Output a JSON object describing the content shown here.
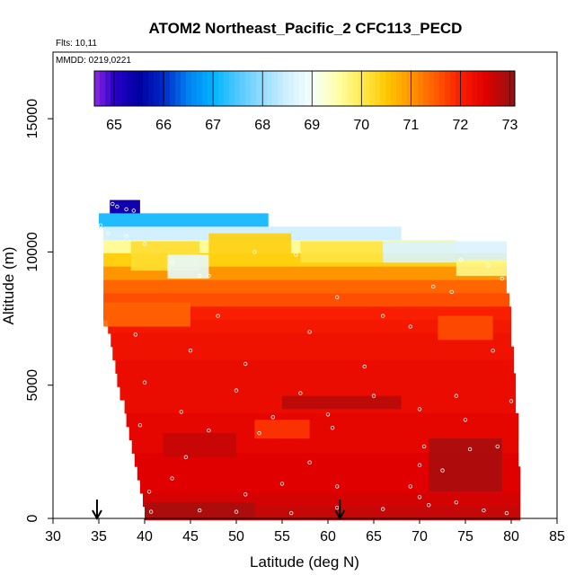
{
  "chart_data": {
    "type": "heatmap",
    "title": "ATOM2 Northeast_Pacific_2 CFC113_PECD",
    "flights_label": "Flts: 10,11",
    "mmdd_label": "MMDD: 0219,0221",
    "xlabel": "Latitude (deg N)",
    "ylabel": "Altitude (m)",
    "xlim": [
      30,
      85
    ],
    "ylim": [
      0,
      17500
    ],
    "xticks": [
      "30",
      "35",
      "40",
      "45",
      "50",
      "55",
      "60",
      "65",
      "70",
      "75",
      "80",
      "85"
    ],
    "yticks": [
      "0",
      "5000",
      "10000",
      "15000"
    ],
    "colorbar_ticks": [
      "65",
      "66",
      "67",
      "68",
      "69",
      "70",
      "71",
      "72",
      "73"
    ],
    "colorbar_range": [
      64.6,
      73.1
    ],
    "arrows_at_latitude": [
      34.8,
      61.3
    ],
    "cell_height_m": 500,
    "row_extents": [
      {
        "alt": 11700,
        "lat": [
          36.2,
          39.5
        ],
        "value": 65.3
      },
      {
        "alt": 11200,
        "lat": [
          35.0,
          53.5
        ],
        "value": 67.2
      },
      {
        "alt": 10700,
        "lat": [
          35.5,
          68.0
        ],
        "value": 68.5
      },
      {
        "alt": 10200,
        "lat": [
          35.5,
          74.0
        ],
        "value": 69.6
      },
      {
        "alt": 9700,
        "lat": [
          35.5,
          79.5
        ],
        "value": 70.4
      },
      {
        "alt": 9200,
        "lat": [
          35.5,
          79.5
        ],
        "value": 71.0
      },
      {
        "alt": 8700,
        "lat": [
          35.5,
          79.5
        ],
        "value": 71.4
      },
      {
        "alt": 8200,
        "lat": [
          35.5,
          79.8
        ],
        "value": 71.6
      },
      {
        "alt": 7700,
        "lat": [
          35.5,
          80.0
        ],
        "value": 72.0
      },
      {
        "alt": 7200,
        "lat": [
          36.0,
          80.0
        ],
        "value": 72.1
      },
      {
        "alt": 6700,
        "lat": [
          36.3,
          80.0
        ],
        "value": 72.2
      },
      {
        "alt": 6200,
        "lat": [
          36.5,
          80.3
        ],
        "value": 72.2
      },
      {
        "alt": 5700,
        "lat": [
          36.8,
          80.3
        ],
        "value": 72.3
      },
      {
        "alt": 5200,
        "lat": [
          37.0,
          80.5
        ],
        "value": 72.3
      },
      {
        "alt": 4700,
        "lat": [
          37.3,
          80.5
        ],
        "value": 72.3
      },
      {
        "alt": 4200,
        "lat": [
          37.8,
          80.5
        ],
        "value": 72.3
      },
      {
        "alt": 3700,
        "lat": [
          38.0,
          80.8
        ],
        "value": 72.4
      },
      {
        "alt": 3200,
        "lat": [
          38.3,
          80.8
        ],
        "value": 72.4
      },
      {
        "alt": 2700,
        "lat": [
          38.6,
          80.8
        ],
        "value": 72.4
      },
      {
        "alt": 2200,
        "lat": [
          38.9,
          80.8
        ],
        "value": 72.5
      },
      {
        "alt": 1700,
        "lat": [
          39.2,
          81.0
        ],
        "value": 72.5
      },
      {
        "alt": 1200,
        "lat": [
          39.5,
          81.0
        ],
        "value": 72.5
      },
      {
        "alt": 700,
        "lat": [
          39.8,
          81.0
        ],
        "value": 72.6
      },
      {
        "alt": 200,
        "lat": [
          40.0,
          81.0
        ],
        "value": 72.7
      }
    ],
    "anomalies": [
      {
        "lat": [
          38.5,
          46.0
        ],
        "alt": [
          9300,
          10400
        ],
        "value": 70.2
      },
      {
        "lat": [
          42.5,
          47.0
        ],
        "alt": [
          9000,
          9900
        ],
        "value": 68.8
      },
      {
        "lat": [
          47.0,
          56.0
        ],
        "alt": [
          9600,
          10700
        ],
        "value": 70.4
      },
      {
        "lat": [
          57.0,
          66.0
        ],
        "alt": [
          9600,
          10400
        ],
        "value": 70.1
      },
      {
        "lat": [
          66.0,
          79.5
        ],
        "alt": [
          9600,
          10400
        ],
        "value": 68.6
      },
      {
        "lat": [
          74.0,
          79.5
        ],
        "alt": [
          9100,
          9700
        ],
        "value": 69.7
      },
      {
        "lat": [
          35.5,
          45.0
        ],
        "alt": [
          7200,
          8100
        ],
        "value": 71.4
      },
      {
        "lat": [
          72.0,
          78.0
        ],
        "alt": [
          6700,
          7600
        ],
        "value": 71.6
      },
      {
        "lat": [
          55.0,
          68.0
        ],
        "alt": [
          4100,
          4600
        ],
        "value": 72.8
      },
      {
        "lat": [
          52.0,
          58.0
        ],
        "alt": [
          3000,
          3700
        ],
        "value": 71.8
      },
      {
        "lat": [
          71.0,
          79.0
        ],
        "alt": [
          1000,
          3000
        ],
        "value": 72.9
      },
      {
        "lat": [
          40.0,
          52.0
        ],
        "alt": [
          0,
          600
        ],
        "value": 72.9
      },
      {
        "lat": [
          42.0,
          50.0
        ],
        "alt": [
          2300,
          3200
        ],
        "value": 72.7
      }
    ],
    "sample_points": [
      {
        "lat": 36.5,
        "alt": 11800
      },
      {
        "lat": 37.0,
        "alt": 11700
      },
      {
        "lat": 38.0,
        "alt": 11600
      },
      {
        "lat": 38.8,
        "alt": 11550
      },
      {
        "lat": 35.2,
        "alt": 11000
      },
      {
        "lat": 36.0,
        "alt": 10700
      },
      {
        "lat": 38.0,
        "alt": 10600
      },
      {
        "lat": 40.0,
        "alt": 10300
      },
      {
        "lat": 43.0,
        "alt": 9600
      },
      {
        "lat": 46.0,
        "alt": 9100
      },
      {
        "lat": 47.0,
        "alt": 9100
      },
      {
        "lat": 52.0,
        "alt": 10000
      },
      {
        "lat": 56.5,
        "alt": 9900
      },
      {
        "lat": 61.0,
        "alt": 8300
      },
      {
        "lat": 66.0,
        "alt": 7600
      },
      {
        "lat": 69.0,
        "alt": 7200
      },
      {
        "lat": 74.5,
        "alt": 9700
      },
      {
        "lat": 77.5,
        "alt": 9500
      },
      {
        "lat": 79.0,
        "alt": 9000
      },
      {
        "lat": 71.5,
        "alt": 8700
      },
      {
        "lat": 73.5,
        "alt": 8500
      },
      {
        "lat": 48.0,
        "alt": 7600
      },
      {
        "lat": 58.0,
        "alt": 7000
      },
      {
        "lat": 39.0,
        "alt": 6900
      },
      {
        "lat": 45.0,
        "alt": 6300
      },
      {
        "lat": 51.0,
        "alt": 5800
      },
      {
        "lat": 64.0,
        "alt": 5700
      },
      {
        "lat": 78.0,
        "alt": 6300
      },
      {
        "lat": 40.0,
        "alt": 5100
      },
      {
        "lat": 50.0,
        "alt": 4800
      },
      {
        "lat": 57.0,
        "alt": 4700
      },
      {
        "lat": 65.0,
        "alt": 4600
      },
      {
        "lat": 74.0,
        "alt": 4600
      },
      {
        "lat": 80.0,
        "alt": 4400
      },
      {
        "lat": 44.0,
        "alt": 4000
      },
      {
        "lat": 54.0,
        "alt": 3800
      },
      {
        "lat": 60.0,
        "alt": 3900
      },
      {
        "lat": 70.0,
        "alt": 4100
      },
      {
        "lat": 75.0,
        "alt": 3700
      },
      {
        "lat": 39.5,
        "alt": 3500
      },
      {
        "lat": 47.0,
        "alt": 3300
      },
      {
        "lat": 52.5,
        "alt": 3200
      },
      {
        "lat": 60.5,
        "alt": 3400
      },
      {
        "lat": 70.5,
        "alt": 2700
      },
      {
        "lat": 75.5,
        "alt": 2600
      },
      {
        "lat": 78.5,
        "alt": 2700
      },
      {
        "lat": 44.5,
        "alt": 2300
      },
      {
        "lat": 58.0,
        "alt": 2100
      },
      {
        "lat": 70.0,
        "alt": 2000
      },
      {
        "lat": 72.5,
        "alt": 1800
      },
      {
        "lat": 43.0,
        "alt": 1500
      },
      {
        "lat": 55.0,
        "alt": 1300
      },
      {
        "lat": 69.0,
        "alt": 1200
      },
      {
        "lat": 40.5,
        "alt": 1000
      },
      {
        "lat": 51.0,
        "alt": 900
      },
      {
        "lat": 61.0,
        "alt": 1200
      },
      {
        "lat": 70.0,
        "alt": 800
      },
      {
        "lat": 74.0,
        "alt": 600
      },
      {
        "lat": 40.7,
        "alt": 250
      },
      {
        "lat": 46.0,
        "alt": 300
      },
      {
        "lat": 50.0,
        "alt": 250
      },
      {
        "lat": 56.0,
        "alt": 200
      },
      {
        "lat": 61.0,
        "alt": 400
      },
      {
        "lat": 66.0,
        "alt": 350
      },
      {
        "lat": 71.0,
        "alt": 500
      },
      {
        "lat": 77.0,
        "alt": 300
      },
      {
        "lat": 79.5,
        "alt": 200
      }
    ]
  }
}
